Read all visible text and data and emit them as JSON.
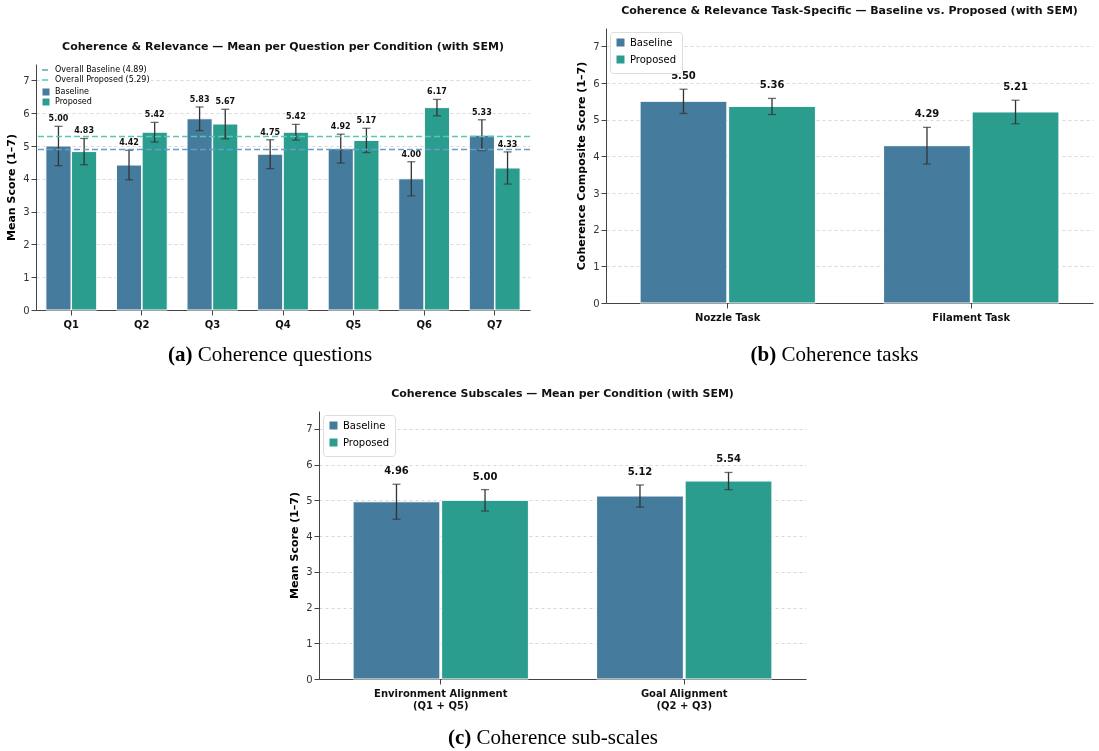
{
  "chart_data": [
    {
      "type": "bar",
      "title": "Coherence & Relevance — Mean per Question per Condition (with SEM)",
      "ylabel": "Mean Score (1–7)",
      "categories": [
        "Q1",
        "Q2",
        "Q3",
        "Q4",
        "Q5",
        "Q6",
        "Q7"
      ],
      "series": [
        {
          "name": "Baseline",
          "color": "#457b9d",
          "values": [
            5.0,
            4.42,
            5.83,
            4.75,
            4.92,
            4.0,
            5.33
          ],
          "errors": [
            0.6,
            0.45,
            0.36,
            0.44,
            0.44,
            0.52,
            0.47
          ],
          "value_labels": [
            "5.00",
            "4.42",
            "5.83",
            "4.75",
            "4.92",
            "4.00",
            "5.33"
          ]
        },
        {
          "name": "Proposed",
          "color": "#2a9d8f",
          "values": [
            4.83,
            5.42,
            5.67,
            5.42,
            5.17,
            6.17,
            4.33
          ],
          "errors": [
            0.4,
            0.3,
            0.45,
            0.24,
            0.37,
            0.25,
            0.49
          ],
          "value_labels": [
            "4.83",
            "5.42",
            "5.67",
            "5.42",
            "5.17",
            "6.17",
            "4.33"
          ]
        }
      ],
      "ref_lines": [
        {
          "axis": "y",
          "value": 4.89,
          "label": "Overall Baseline (4.89)",
          "color": "#6b9ac4",
          "line_style": "dashed"
        },
        {
          "axis": "y",
          "value": 5.29,
          "label": "Overall Proposed (5.29)",
          "color": "#5cc4b4",
          "line_style": "dashed"
        }
      ],
      "ylim": [
        0,
        7.5
      ],
      "yticks": [
        0,
        1,
        2,
        3,
        4,
        5,
        6,
        7
      ],
      "grid": "y",
      "legend": "top left",
      "annotations": [
        "(a) Coherence questions"
      ]
    },
    {
      "type": "bar",
      "title": "Coherence & Relevance Task-Specific — Baseline vs. Proposed (with SEM)",
      "ylabel": "Coherence Composite Score (1–7)",
      "categories": [
        "Nozzle Task",
        "Filament Task"
      ],
      "series": [
        {
          "name": "Baseline",
          "color": "#457b9d",
          "values": [
            5.5,
            4.29
          ],
          "errors": [
            0.33,
            0.5
          ],
          "value_labels": [
            "5.50",
            "4.29"
          ]
        },
        {
          "name": "Proposed",
          "color": "#2a9d8f",
          "values": [
            5.36,
            5.21
          ],
          "errors": [
            0.22,
            0.32
          ],
          "value_labels": [
            "5.36",
            "5.21"
          ]
        }
      ],
      "ylim": [
        0,
        7.5
      ],
      "yticks": [
        0,
        1,
        2,
        3,
        4,
        5,
        6,
        7
      ],
      "grid": "y",
      "legend": "top left",
      "annotations": [
        "(b) Coherence tasks"
      ]
    },
    {
      "type": "bar",
      "title": "Coherence Subscales — Mean per Condition (with SEM)",
      "ylabel": "Mean Score (1–7)",
      "categories": [
        "Environment Alignment\n(Q1 + Q5)",
        "Goal Alignment\n(Q2 + Q3)"
      ],
      "series": [
        {
          "name": "Baseline",
          "color": "#457b9d",
          "values": [
            4.96,
            5.12
          ],
          "errors": [
            0.49,
            0.31
          ],
          "value_labels": [
            "4.96",
            "5.12"
          ]
        },
        {
          "name": "Proposed",
          "color": "#2a9d8f",
          "values": [
            5.0,
            5.54
          ],
          "errors": [
            0.3,
            0.24
          ],
          "value_labels": [
            "5.00",
            "5.54"
          ]
        }
      ],
      "ylim": [
        0,
        7.5
      ],
      "yticks": [
        0,
        1,
        2,
        3,
        4,
        5,
        6,
        7
      ],
      "grid": "y",
      "legend": "top left",
      "annotations": [
        "(c) Coherence sub-scales"
      ]
    }
  ]
}
